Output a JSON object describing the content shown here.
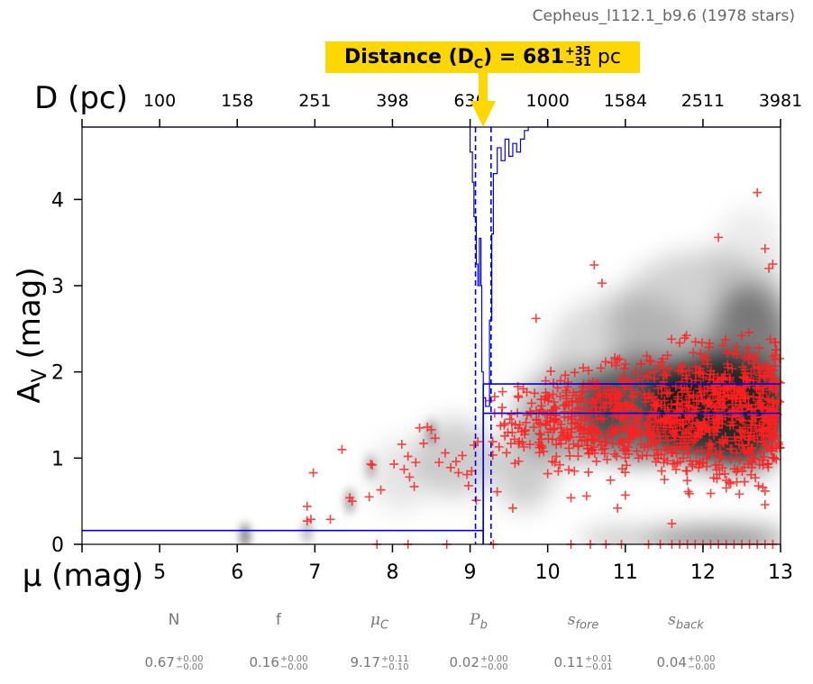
{
  "figure_title": "Cepheus_l112.1_b9.6 (1978 stars)",
  "distance_label": {
    "prefix": "Distance (D",
    "subscript": "C",
    "suffix": ") = 681",
    "plus": "+35",
    "minus": "−31",
    "unit": " pc"
  },
  "colors": {
    "model": "#0000ee",
    "stars": "#ff2020",
    "highlight": "#ffd700",
    "text_gray": "#777777"
  },
  "chart_data": {
    "type": "scatter",
    "xlabel": "μ (mag)",
    "ylabel": "A_V (mag)",
    "top_axis_label": "D (pc)",
    "xlim": [
      4,
      13
    ],
    "ylim": [
      0,
      4.84
    ],
    "x_ticks": [
      5,
      6,
      7,
      8,
      9,
      10,
      11,
      12,
      13
    ],
    "y_ticks": [
      0,
      1,
      2,
      3,
      4
    ],
    "top_ticks_mu": [
      5,
      6,
      7,
      8,
      9,
      10,
      11,
      12,
      13
    ],
    "top_tick_labels": [
      "100",
      "158",
      "251",
      "398",
      "630",
      "1000",
      "1584",
      "2511",
      "3981"
    ],
    "grid": false,
    "cloud_distance_mu": 9.17,
    "cloud_distance_band_mu": [
      9.07,
      9.27
    ],
    "foreground_extinction": 0.16,
    "background_extinction": [
      1.52,
      1.86
    ],
    "series": [
      {
        "points": [
          [
            6.9,
            0.27
          ],
          [
            6.95,
            0.29
          ],
          [
            6.9,
            0.44
          ],
          [
            6.98,
            0.83
          ],
          [
            7.2,
            0.29
          ],
          [
            7.35,
            1.1
          ],
          [
            7.45,
            0.54
          ],
          [
            7.48,
            0.5
          ],
          [
            7.72,
            0.93
          ],
          [
            7.74,
            0.92
          ],
          [
            7.7,
            0.55
          ],
          [
            7.85,
            0.63
          ],
          [
            8.02,
            0.93
          ],
          [
            8.15,
            0.87
          ],
          [
            8.2,
            1.02
          ],
          [
            8.28,
            0.67
          ],
          [
            8.35,
            1.35
          ],
          [
            8.45,
            1.36
          ],
          [
            8.5,
            1.33
          ],
          [
            8.55,
            1.23
          ],
          [
            8.6,
            0.95
          ],
          [
            8.68,
            1.06
          ],
          [
            8.75,
            0.89
          ],
          [
            8.82,
            0.96
          ],
          [
            8.9,
            1.03
          ],
          [
            8.96,
            0.81
          ],
          [
            8.98,
            0.68
          ],
          [
            9.02,
            0.85
          ],
          [
            9.05,
            1.15
          ],
          [
            8.4,
            1.17
          ],
          [
            8.3,
            0.95
          ],
          [
            8.12,
            1.16
          ],
          [
            8.22,
            0.78
          ],
          [
            8.85,
            0.83
          ],
          [
            9.08,
            0.51
          ],
          [
            9.1,
            1.19
          ],
          [
            12.7,
            4.08
          ],
          [
            12.8,
            3.43
          ],
          [
            12.2,
            3.56
          ],
          [
            12.9,
            3.25
          ],
          [
            12.85,
            3.2
          ],
          [
            10.6,
            3.24
          ],
          [
            10.7,
            3.03
          ],
          [
            9.85,
            2.62
          ],
          [
            11.6,
            0.24
          ],
          [
            12.8,
            0.46
          ],
          [
            10.0,
            0.82
          ],
          [
            10.3,
            0.54
          ],
          [
            9.55,
            0.42
          ],
          [
            9.35,
            0.61
          ],
          [
            10.5,
            0.56
          ],
          [
            10.9,
            0.42
          ],
          [
            11.0,
            0.57
          ],
          [
            12.1,
            0.59
          ],
          [
            7.8,
            0.0
          ],
          [
            8.2,
            0.0
          ],
          [
            8.7,
            0.0
          ],
          [
            9.3,
            0.0
          ],
          [
            10.3,
            0.0
          ],
          [
            10.55,
            0.0
          ],
          [
            10.75,
            0.0
          ],
          [
            10.95,
            0.0
          ],
          [
            11.3,
            0.0
          ],
          [
            11.45,
            0.0
          ],
          [
            11.6,
            0.0
          ],
          [
            11.7,
            0.0
          ],
          [
            11.8,
            0.0
          ],
          [
            11.9,
            0.0
          ],
          [
            12.0,
            0.0
          ],
          [
            12.1,
            0.0
          ],
          [
            12.2,
            0.0
          ],
          [
            12.3,
            0.0
          ],
          [
            12.4,
            0.0
          ],
          [
            12.5,
            0.0
          ],
          [
            12.6,
            0.0
          ],
          [
            12.7,
            0.0
          ],
          [
            12.8,
            0.0
          ],
          [
            12.9,
            0.0
          ]
        ]
      }
    ],
    "scatter_generated": {
      "count": 1100,
      "x_range": [
        9.2,
        13.0
      ],
      "y_center_at_x_start": 1.4,
      "y_center_at_x_end": 1.55,
      "y_spread": 0.35
    },
    "histogram_top": [
      [
        8.9,
        4.84
      ],
      [
        9.0,
        4.55
      ],
      [
        9.03,
        4.2
      ],
      [
        9.05,
        3.8
      ],
      [
        9.08,
        3.25
      ],
      [
        9.1,
        3.0
      ],
      [
        9.12,
        3.55
      ],
      [
        9.14,
        3.0
      ],
      [
        9.15,
        2.0
      ],
      [
        9.17,
        1.7
      ],
      [
        9.2,
        1.6
      ],
      [
        9.25,
        2.6
      ],
      [
        9.28,
        3.6
      ],
      [
        9.3,
        4.3
      ],
      [
        9.35,
        4.6
      ],
      [
        9.4,
        4.45
      ],
      [
        9.45,
        4.7
      ],
      [
        9.5,
        4.5
      ],
      [
        9.55,
        4.65
      ],
      [
        9.6,
        4.55
      ],
      [
        9.65,
        4.7
      ],
      [
        9.7,
        4.8
      ],
      [
        9.75,
        4.84
      ]
    ]
  },
  "params": [
    {
      "name": "N",
      "italic": false,
      "value": "0.67",
      "plus": "+0.00",
      "minus": "−0.00"
    },
    {
      "name": "f",
      "italic": false,
      "value": "0.16",
      "plus": "+0.00",
      "minus": "−0.00"
    },
    {
      "name": "μ",
      "sub": "C",
      "italic": true,
      "value": "9.17",
      "plus": "+0.11",
      "minus": "−0.10"
    },
    {
      "name": "P",
      "sub": "b",
      "italic": true,
      "value": "0.02",
      "plus": "+0.00",
      "minus": "−0.00"
    },
    {
      "name": "s",
      "sub": "fore",
      "italic": true,
      "value": "0.11",
      "plus": "+0.01",
      "minus": "−0.01"
    },
    {
      "name": "s",
      "sub": "back",
      "italic": true,
      "value": "0.04",
      "plus": "+0.00",
      "minus": "−0.00"
    }
  ]
}
